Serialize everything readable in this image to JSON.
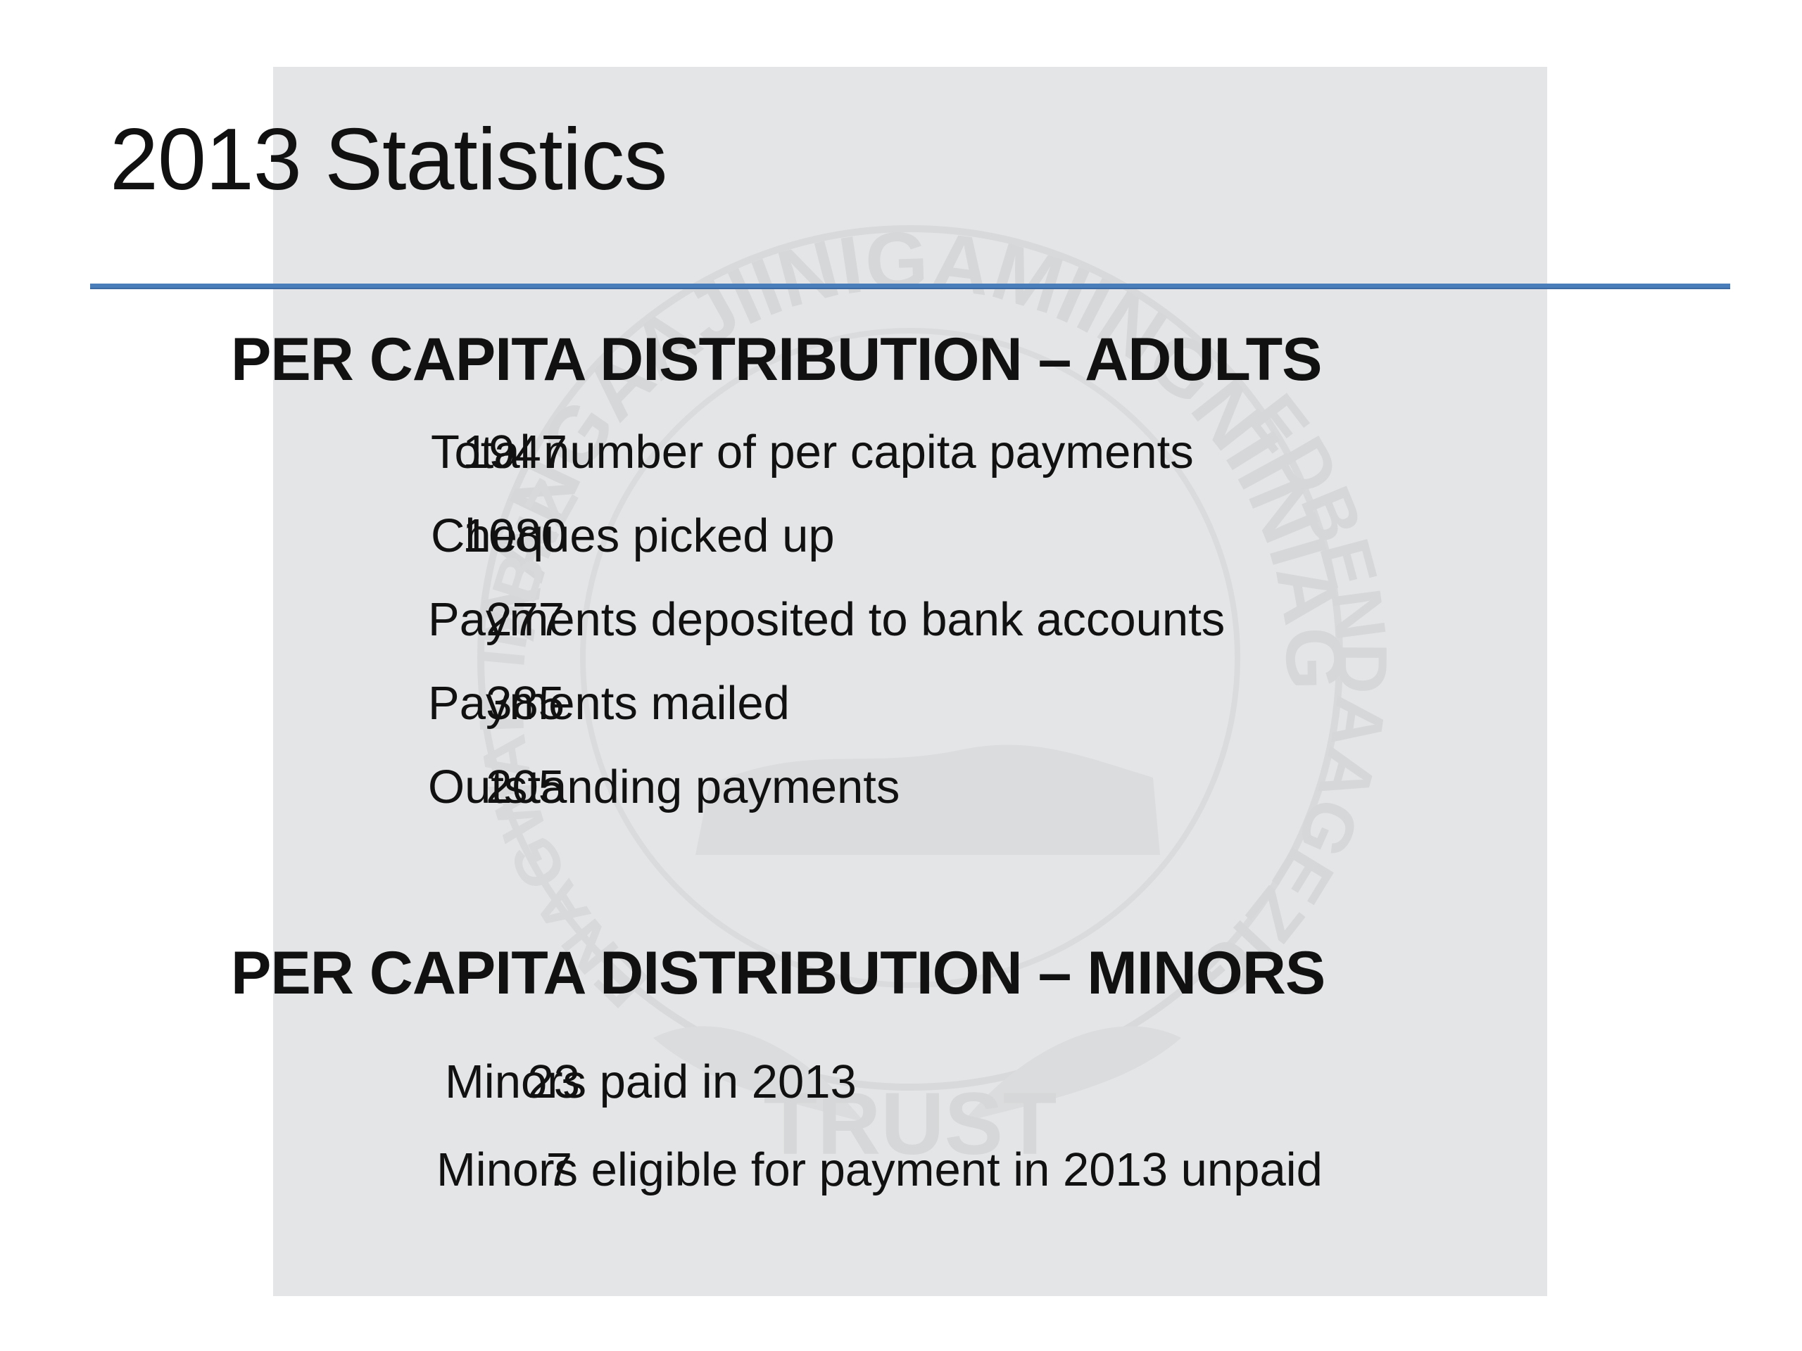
{
  "slide": {
    "title": "2013 Statistics",
    "colors": {
      "rule": "#4a7ebb",
      "watermark_panel": "#e4e5e6",
      "text": "#111111"
    }
  },
  "adults": {
    "heading": "PER CAPITA DISTRIBUTION – ADULTS",
    "rows": [
      {
        "value": "1947",
        "label": "Total number of per capita payments"
      },
      {
        "value": "1080",
        "label": "Cheques picked up"
      },
      {
        "value": "277",
        "label": "Payments deposited to bank accounts"
      },
      {
        "value": "385",
        "label": "Payments mailed"
      },
      {
        "value": "205",
        "label": "Outstanding payments"
      }
    ]
  },
  "minors": {
    "heading": "PER CAPITA DISTRIBUTION – MINORS",
    "rows": [
      {
        "value": "23",
        "label": "Minors paid in 2013"
      },
      {
        "value": "7",
        "label": "Minors eligible for payment in 2013 unpaid"
      }
    ]
  },
  "watermark": {
    "seal_top_text": "YAANGAAJIINIGAMIINGNIINIAG",
    "seal_right_text": "EDBENDAAGEZIG",
    "seal_bottom_text": "TRUST",
    "seal_left_text": "ENAGWAK INBIIZ"
  }
}
